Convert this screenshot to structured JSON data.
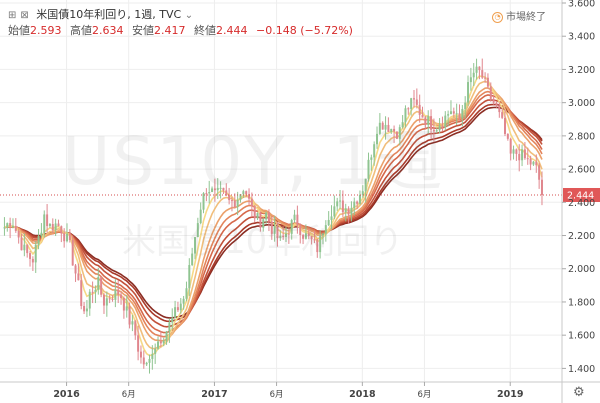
{
  "header": {
    "title": "米国債10年利回り, 1週, TVC",
    "ohlc": [
      {
        "label": "始値",
        "value": "2.593"
      },
      {
        "label": "高値",
        "value": "2.634"
      },
      {
        "label": "安値",
        "value": "2.417"
      },
      {
        "label": "終値",
        "value": "2.444"
      }
    ],
    "change": "−0.148 (−5.72%)",
    "market_status": "市場終了"
  },
  "watermark": {
    "symbol": "US10Y, 1週",
    "name": "米国債10年利回り"
  },
  "colors": {
    "up": "#8fc491",
    "down": "#e0868d",
    "price_line": "#d44f4f",
    "price_label_bg": "#e05757",
    "ribbon": [
      "#8b2d23",
      "#a93a2a",
      "#c2513a",
      "#d6684a",
      "#e3845b",
      "#eba06a",
      "#f1be7b",
      "#f6d986"
    ]
  },
  "chart_data": {
    "type": "candlestick",
    "title": "米国債10年利回り, 1週, TVC",
    "y_ticks": [
      "1.400",
      "1.600",
      "1.800",
      "2.000",
      "2.200",
      "2.400",
      "2.600",
      "2.800",
      "3.000",
      "3.200",
      "3.400",
      "3.600"
    ],
    "ylim": [
      1.3,
      3.6
    ],
    "x_ticks": [
      {
        "label": "2016",
        "t": 2016.0
      },
      {
        "label": "6月",
        "t": 2016.42
      },
      {
        "label": "2017",
        "t": 2017.0
      },
      {
        "label": "6月",
        "t": 2017.42
      },
      {
        "label": "2018",
        "t": 2018.0
      },
      {
        "label": "6月",
        "t": 2018.42
      },
      {
        "label": "2019",
        "t": 2019.0
      }
    ],
    "xlim": [
      2015.55,
      2019.35
    ],
    "last_price": 2.444,
    "anchors": [
      [
        2015.58,
        2.25
      ],
      [
        2015.63,
        2.3
      ],
      [
        2015.67,
        2.2
      ],
      [
        2015.72,
        2.1
      ],
      [
        2015.77,
        2.05
      ],
      [
        2015.81,
        2.18
      ],
      [
        2015.85,
        2.33
      ],
      [
        2015.88,
        2.25
      ],
      [
        2015.92,
        2.27
      ],
      [
        2015.96,
        2.25
      ],
      [
        2016.02,
        2.14
      ],
      [
        2016.06,
        1.98
      ],
      [
        2016.1,
        1.8
      ],
      [
        2016.13,
        1.72
      ],
      [
        2016.16,
        1.86
      ],
      [
        2016.21,
        1.92
      ],
      [
        2016.25,
        1.8
      ],
      [
        2016.3,
        1.84
      ],
      [
        2016.36,
        1.86
      ],
      [
        2016.42,
        1.7
      ],
      [
        2016.46,
        1.62
      ],
      [
        2016.5,
        1.46
      ],
      [
        2016.55,
        1.4
      ],
      [
        2016.58,
        1.52
      ],
      [
        2016.63,
        1.58
      ],
      [
        2016.67,
        1.62
      ],
      [
        2016.72,
        1.7
      ],
      [
        2016.76,
        1.78
      ],
      [
        2016.8,
        1.83
      ],
      [
        2016.85,
        2.1
      ],
      [
        2016.9,
        2.36
      ],
      [
        2016.95,
        2.5
      ],
      [
        2017.0,
        2.44
      ],
      [
        2017.05,
        2.45
      ],
      [
        2017.1,
        2.4
      ],
      [
        2017.15,
        2.42
      ],
      [
        2017.2,
        2.5
      ],
      [
        2017.25,
        2.36
      ],
      [
        2017.3,
        2.28
      ],
      [
        2017.35,
        2.33
      ],
      [
        2017.4,
        2.22
      ],
      [
        2017.45,
        2.16
      ],
      [
        2017.5,
        2.24
      ],
      [
        2017.55,
        2.3
      ],
      [
        2017.6,
        2.21
      ],
      [
        2017.65,
        2.17
      ],
      [
        2017.7,
        2.12
      ],
      [
        2017.75,
        2.3
      ],
      [
        2017.8,
        2.37
      ],
      [
        2017.85,
        2.38
      ],
      [
        2017.9,
        2.36
      ],
      [
        2017.95,
        2.41
      ],
      [
        2018.0,
        2.48
      ],
      [
        2018.05,
        2.66
      ],
      [
        2018.1,
        2.86
      ],
      [
        2018.15,
        2.88
      ],
      [
        2018.2,
        2.84
      ],
      [
        2018.25,
        2.82
      ],
      [
        2018.3,
        2.97
      ],
      [
        2018.35,
        3.0
      ],
      [
        2018.4,
        2.93
      ],
      [
        2018.45,
        2.88
      ],
      [
        2018.5,
        2.86
      ],
      [
        2018.55,
        2.9
      ],
      [
        2018.6,
        2.96
      ],
      [
        2018.65,
        2.88
      ],
      [
        2018.7,
        3.05
      ],
      [
        2018.75,
        3.18
      ],
      [
        2018.8,
        3.18
      ],
      [
        2018.85,
        3.06
      ],
      [
        2018.9,
        2.98
      ],
      [
        2018.95,
        2.86
      ],
      [
        2019.0,
        2.68
      ],
      [
        2019.05,
        2.7
      ],
      [
        2019.1,
        2.66
      ],
      [
        2019.15,
        2.63
      ],
      [
        2019.18,
        2.593
      ],
      [
        2019.22,
        2.444
      ]
    ],
    "ema_periods": [
      3,
      5,
      8,
      10,
      12,
      15,
      18,
      20
    ]
  }
}
